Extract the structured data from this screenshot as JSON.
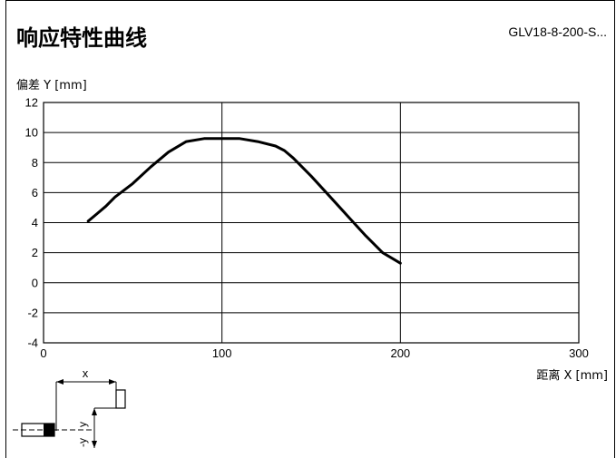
{
  "header": {
    "title": "响应特性曲线",
    "model": "GLV18-8-200-S..."
  },
  "chart_data": {
    "type": "line",
    "title": "响应特性曲线",
    "ylabel": "偏差 Y [mm]",
    "xlabel": "距离 X [mm]",
    "xlim": [
      0,
      300
    ],
    "ylim": [
      -4,
      12
    ],
    "xticks": [
      0,
      100,
      200,
      300
    ],
    "yticks": [
      12,
      10,
      8,
      6,
      4,
      2,
      0,
      -2,
      -4
    ],
    "grid": true,
    "series": [
      {
        "x": [
          25,
          30,
          35,
          40,
          50,
          60,
          70,
          80,
          90,
          100,
          110,
          120,
          130,
          135,
          140,
          150,
          160,
          170,
          180,
          190,
          200
        ],
        "values": [
          4.1,
          4.6,
          5.1,
          5.7,
          6.6,
          7.7,
          8.7,
          9.4,
          9.6,
          9.6,
          9.6,
          9.4,
          9.1,
          8.8,
          8.3,
          7.1,
          5.8,
          4.5,
          3.2,
          2.0,
          1.3
        ]
      }
    ]
  },
  "diagram": {
    "x_label": "x",
    "y_label": "y",
    "neg_y_label": "-y"
  },
  "colors": {
    "line": "#000000",
    "grid": "#000000"
  }
}
